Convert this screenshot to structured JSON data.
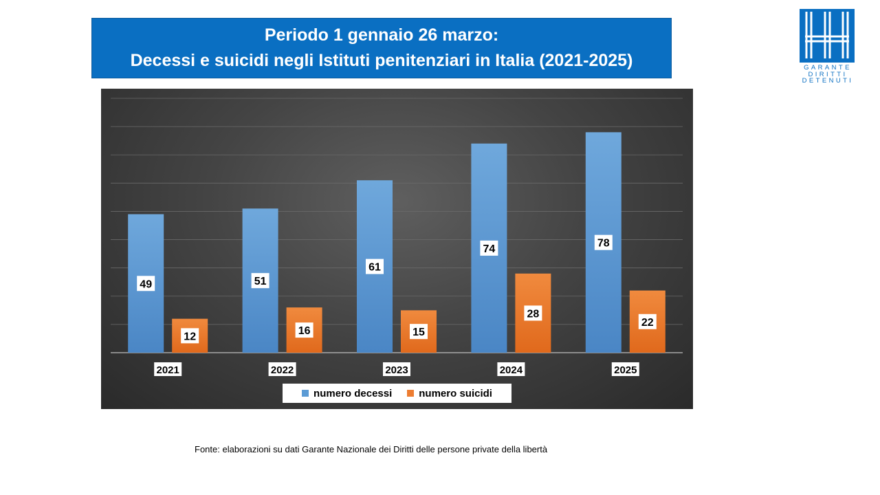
{
  "header": {
    "title_line1": "Periodo 1 gennaio 26 marzo:",
    "title_line2": "Decessi e suicidi negli Istituti penitenziari in Italia (2021-2025)"
  },
  "logo": {
    "icon": "garante-logo-icon",
    "text_lines": [
      "GARANTE",
      "DIRITTI",
      "DETENUTI"
    ]
  },
  "colors": {
    "title_background": "#0a6fc2",
    "series_decessi": "#5b9bd5",
    "series_suicidi": "#ed7d31"
  },
  "chart_data": {
    "type": "bar",
    "categories": [
      "2021",
      "2022",
      "2023",
      "2024",
      "2025"
    ],
    "series": [
      {
        "name": "numero decessi",
        "values": [
          49,
          51,
          61,
          74,
          78
        ]
      },
      {
        "name": "numero suicidi",
        "values": [
          12,
          16,
          15,
          28,
          22
        ]
      }
    ],
    "ylim": [
      0,
      90
    ],
    "grid": true,
    "legend": "bottom",
    "data_labels": true
  },
  "source_note": "Fonte: elaborazioni su dati Garante Nazionale dei Diritti delle persone private della libertà"
}
